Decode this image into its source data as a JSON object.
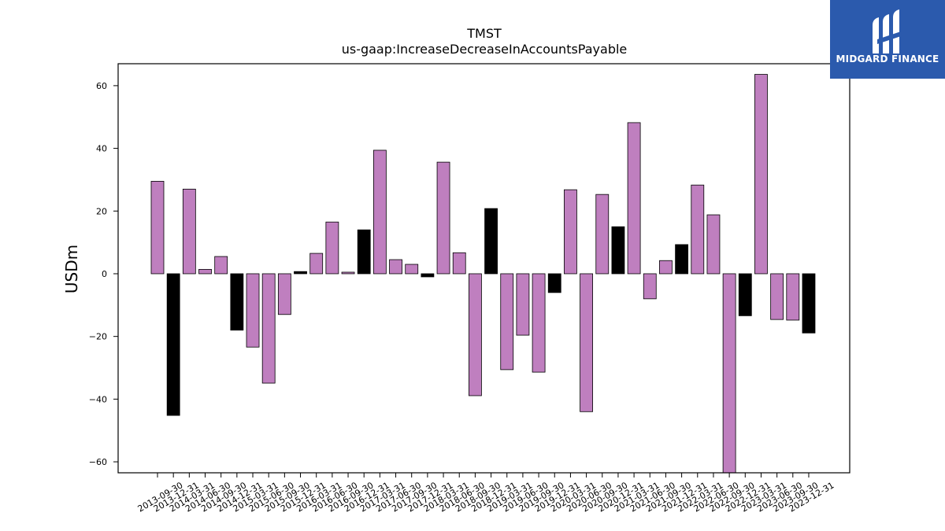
{
  "logo": {
    "text": "MIDGARD FINANCE",
    "background": "#2b5aad"
  },
  "chart_data": {
    "type": "bar",
    "title": "TMST",
    "subtitle": "us-gaap:IncreaseDecreaseInAccountsPayable",
    "ylabel": "USDm",
    "xlabel": "",
    "ylim": [
      -63.5,
      67
    ],
    "yticks": [
      -60,
      -40,
      -20,
      0,
      20,
      40,
      60
    ],
    "grid": false,
    "colors": {
      "annual": "#000000",
      "quarter": "#bf7fbf",
      "edge": "#000000"
    },
    "categories": [
      "2013-09-30",
      "2013-12-31",
      "2014-03-31",
      "2014-06-30",
      "2014-09-30",
      "2014-12-31",
      "2015-03-31",
      "2015-06-30",
      "2015-09-30",
      "2015-12-31",
      "2016-03-31",
      "2016-06-30",
      "2016-09-30",
      "2016-12-31",
      "2017-03-31",
      "2017-06-30",
      "2017-09-30",
      "2017-12-31",
      "2018-03-31",
      "2018-06-30",
      "2018-09-30",
      "2018-12-31",
      "2019-03-31",
      "2019-06-30",
      "2019-09-30",
      "2019-12-31",
      "2020-03-31",
      "2020-06-30",
      "2020-09-30",
      "2020-12-31",
      "2021-03-31",
      "2021-06-30",
      "2021-09-30",
      "2021-12-31",
      "2022-03-31",
      "2022-06-30",
      "2022-09-30",
      "2022-12-31",
      "2023-03-31",
      "2023-06-30",
      "2023-09-30",
      "2023-12-31"
    ],
    "values": [
      29.5,
      -45.2,
      27.0,
      1.4,
      5.5,
      -18.0,
      -23.4,
      -34.9,
      -13.0,
      0.7,
      6.5,
      16.5,
      0.5,
      14.0,
      39.4,
      4.5,
      3.0,
      -1.0,
      35.6,
      6.7,
      -38.9,
      20.8,
      -30.6,
      -19.6,
      -31.4,
      -6.0,
      26.8,
      -44.0,
      25.3,
      15.0,
      48.2,
      -8.0,
      4.2,
      9.3,
      28.3,
      18.8,
      -63.5,
      -13.4,
      63.6,
      -14.6,
      -14.8,
      -18.9
    ],
    "bar_kind": [
      "quarter",
      "annual",
      "quarter",
      "quarter",
      "quarter",
      "annual",
      "quarter",
      "quarter",
      "quarter",
      "annual",
      "quarter",
      "quarter",
      "quarter",
      "annual",
      "quarter",
      "quarter",
      "quarter",
      "annual",
      "quarter",
      "quarter",
      "quarter",
      "annual",
      "quarter",
      "quarter",
      "quarter",
      "annual",
      "quarter",
      "quarter",
      "quarter",
      "annual",
      "quarter",
      "quarter",
      "quarter",
      "annual",
      "quarter",
      "quarter",
      "quarter",
      "annual",
      "quarter",
      "quarter",
      "quarter",
      "annual"
    ]
  }
}
